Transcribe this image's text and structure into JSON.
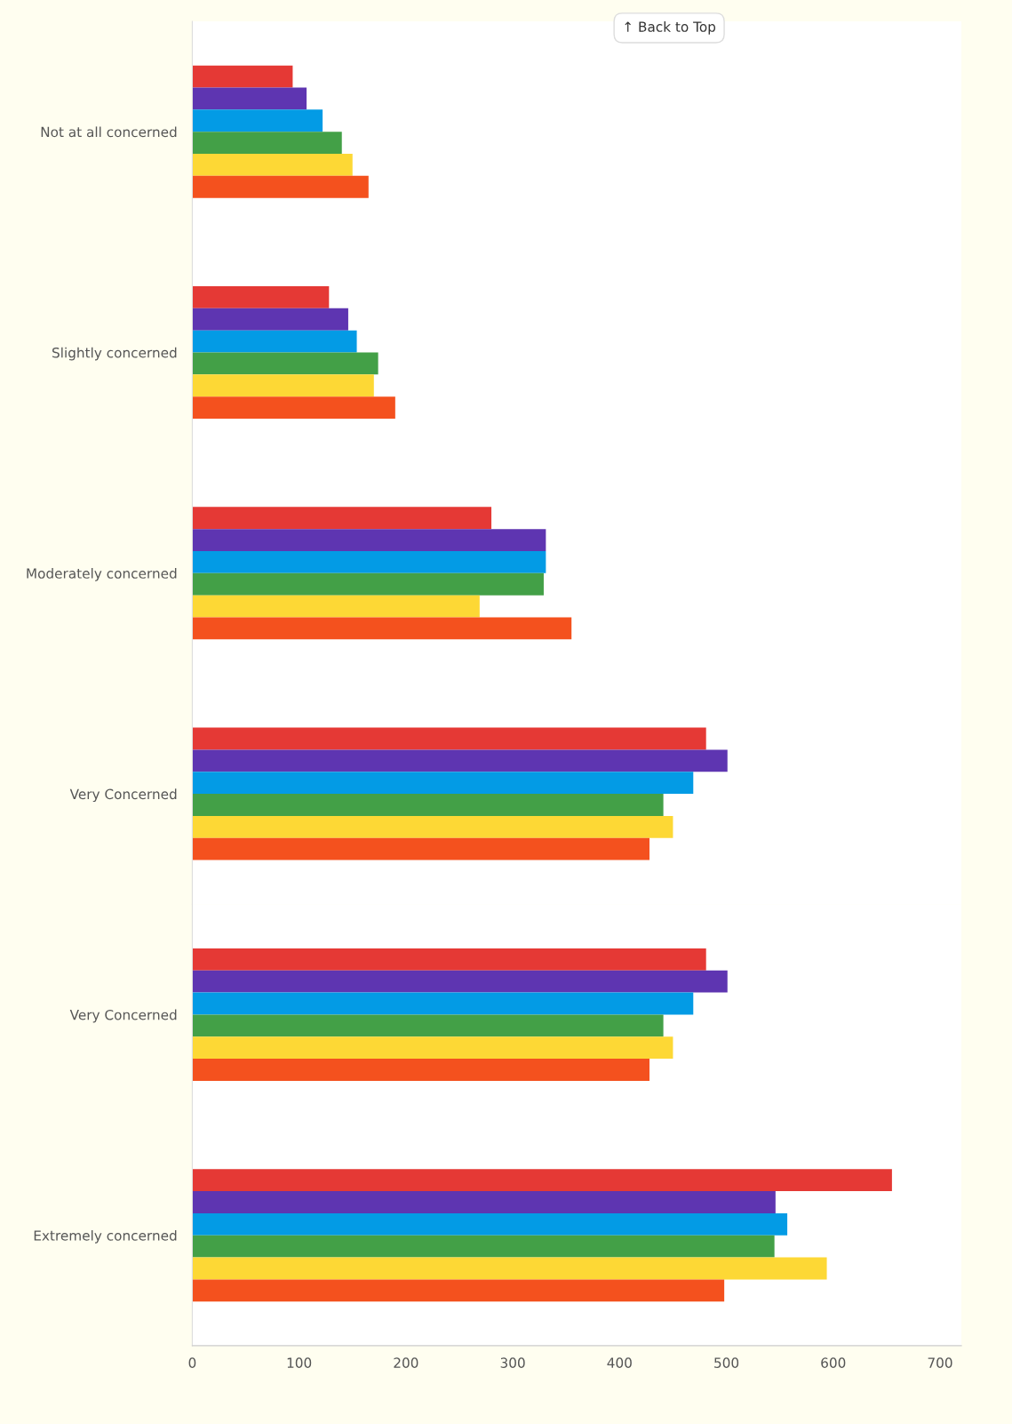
{
  "chart_data": [
    {
      "type": "bar",
      "orientation": "horizontal",
      "categories": [
        "Not at all concerned",
        "Slightly concerned",
        "Moderately concerned",
        "Very Concerned"
      ],
      "xlim": [
        0,
        720
      ],
      "tick_labels": "y",
      "grid": false,
      "legend": false,
      "annotations": [
        "↑ Back to Top"
      ],
      "series": [
        {
          "color": "#e53935",
          "values": [
            94,
            128,
            280,
            481
          ]
        },
        {
          "color": "#5e35b1",
          "values": [
            107,
            146,
            331,
            501
          ]
        },
        {
          "color": "#039be5",
          "values": [
            122,
            154,
            331,
            469
          ]
        },
        {
          "color": "#43a047",
          "values": [
            140,
            174,
            329,
            441
          ]
        },
        {
          "color": "#fdd835",
          "values": [
            150,
            170,
            269,
            450
          ]
        },
        {
          "color": "#f4511e",
          "values": [
            165,
            190,
            355,
            428
          ]
        }
      ]
    },
    {
      "type": "bar",
      "orientation": "horizontal",
      "categories": [
        "Very Concerned",
        "Extremely concerned"
      ],
      "xlim": [
        0,
        720
      ],
      "xticks": [
        0,
        100,
        200,
        300,
        400,
        500,
        600,
        700
      ],
      "grid": false,
      "legend": false,
      "series": [
        {
          "color": "#e53935",
          "values": [
            481,
            655
          ]
        },
        {
          "color": "#5e35b1",
          "values": [
            501,
            546
          ]
        },
        {
          "color": "#039be5",
          "values": [
            469,
            557
          ]
        },
        {
          "color": "#43a047",
          "values": [
            441,
            545
          ]
        },
        {
          "color": "#fdd835",
          "values": [
            450,
            594
          ]
        },
        {
          "color": "#f4511e",
          "values": [
            428,
            498
          ]
        }
      ]
    }
  ]
}
